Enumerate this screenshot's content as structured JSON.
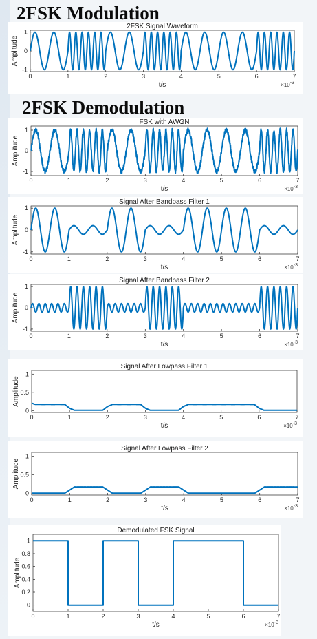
{
  "headings": {
    "modulation": "2FSK Modulation",
    "demodulation": "2FSK Demodulation"
  },
  "colors": {
    "line": "#0072bd",
    "axis": "#262626",
    "grid": "#e6e6e6"
  },
  "chart_data": [
    {
      "id": "fsk-signal",
      "type": "line",
      "title": "2FSK Signal Waveform",
      "xlabel": "t/s",
      "ylabel": "Amplitude",
      "x_exponent_label": "×10-3",
      "xlim": [
        0,
        7
      ],
      "ylim": [
        -1.1,
        1.1
      ],
      "xticks": [
        0,
        1,
        2,
        3,
        4,
        5,
        6,
        7
      ],
      "yticks": [
        -1,
        0,
        1
      ],
      "bits": [
        1,
        0,
        1,
        0,
        1,
        1,
        0
      ],
      "carrier_cycles_per_ms": {
        "bit1": 2,
        "bit0": 6
      },
      "amplitude": 1,
      "noise": 0
    },
    {
      "id": "fsk-awgn",
      "type": "line",
      "title": "FSK with AWGN",
      "xlabel": "t/s",
      "ylabel": "Amplitude",
      "x_exponent_label": "×10-3",
      "xlim": [
        0,
        7
      ],
      "ylim": [
        -1.2,
        1.2
      ],
      "xticks": [
        0,
        1,
        2,
        3,
        4,
        5,
        6,
        7
      ],
      "yticks": [
        -1,
        0,
        1
      ],
      "bits": [
        1,
        0,
        1,
        0,
        1,
        1,
        0
      ],
      "carrier_cycles_per_ms": {
        "bit1": 2,
        "bit0": 6
      },
      "amplitude": 1,
      "noise": 0.1
    },
    {
      "id": "bandpass-1",
      "type": "line",
      "title": "Signal After Bandpass Filter 1",
      "xlabel": "t/s",
      "ylabel": "Amplitude",
      "x_exponent_label": "×10-3",
      "xlim": [
        0,
        7
      ],
      "ylim": [
        -1.1,
        1.1
      ],
      "xticks": [
        0,
        1,
        2,
        3,
        4,
        5,
        6,
        7
      ],
      "yticks": [
        -1,
        0,
        1
      ],
      "bits": [
        1,
        0,
        1,
        0,
        1,
        1,
        0
      ],
      "carrier_cycles_per_ms": 2,
      "pass_bit": 1,
      "pass_amplitude": 1,
      "stop_amplitude": 0.2
    },
    {
      "id": "bandpass-2",
      "type": "line",
      "title": "Signal After Bandpass Filter 2",
      "xlabel": "t/s",
      "ylabel": "Amplitude",
      "x_exponent_label": "×10-3",
      "xlim": [
        0,
        7
      ],
      "ylim": [
        -1.1,
        1.1
      ],
      "xticks": [
        0,
        1,
        2,
        3,
        4,
        5,
        6,
        7
      ],
      "yticks": [
        -1,
        0,
        1
      ],
      "bits": [
        1,
        0,
        1,
        0,
        1,
        1,
        0
      ],
      "carrier_cycles_per_ms": 6,
      "pass_bit": 0,
      "pass_amplitude": 1,
      "stop_amplitude": 0.2
    },
    {
      "id": "lowpass-1",
      "type": "line",
      "title": "Signal After Lowpass Filter 1",
      "xlabel": "t/s",
      "ylabel": "Amplitude",
      "x_exponent_label": "×10-3",
      "xlim": [
        0,
        7
      ],
      "ylim": [
        -0.05,
        1.1
      ],
      "xticks": [
        0,
        1,
        2,
        3,
        4,
        5,
        6,
        7
      ],
      "yticks": [
        0,
        0.5,
        1
      ],
      "bits": [
        1,
        0,
        1,
        0,
        1,
        1,
        0
      ],
      "high_level": 0.17,
      "ripple": 0.06,
      "ripple_cycles_per_ms": 4,
      "low_level": 0.01
    },
    {
      "id": "lowpass-2",
      "type": "line",
      "title": "Signal After Lowpass Filter 2",
      "xlabel": "t/s",
      "ylabel": "Amplitude",
      "x_exponent_label": "×10-3",
      "xlim": [
        0,
        7
      ],
      "ylim": [
        -0.05,
        1.1
      ],
      "xticks": [
        0,
        1,
        2,
        3,
        4,
        5,
        6,
        7
      ],
      "yticks": [
        0,
        0.5,
        1
      ],
      "bits": [
        1,
        0,
        1,
        0,
        1,
        1,
        0
      ],
      "active_bit": 0,
      "high_level": 0.17,
      "ripple": 0.02,
      "ripple_cycles_per_ms": 12,
      "low_level": 0.0
    },
    {
      "id": "demodulated",
      "type": "line",
      "title": "Demodulated FSK Signal",
      "xlabel": "t/s",
      "ylabel": "Amplitude",
      "x_exponent_label": "×10-3",
      "xlim": [
        0,
        7
      ],
      "ylim": [
        -0.1,
        1.1
      ],
      "xticks": [
        0,
        1,
        2,
        3,
        4,
        5,
        6,
        7
      ],
      "yticks": [
        0,
        0.2,
        0.4,
        0.6,
        0.8,
        1
      ],
      "bits": [
        1,
        0,
        1,
        0,
        1,
        1,
        0
      ],
      "step": true
    }
  ]
}
